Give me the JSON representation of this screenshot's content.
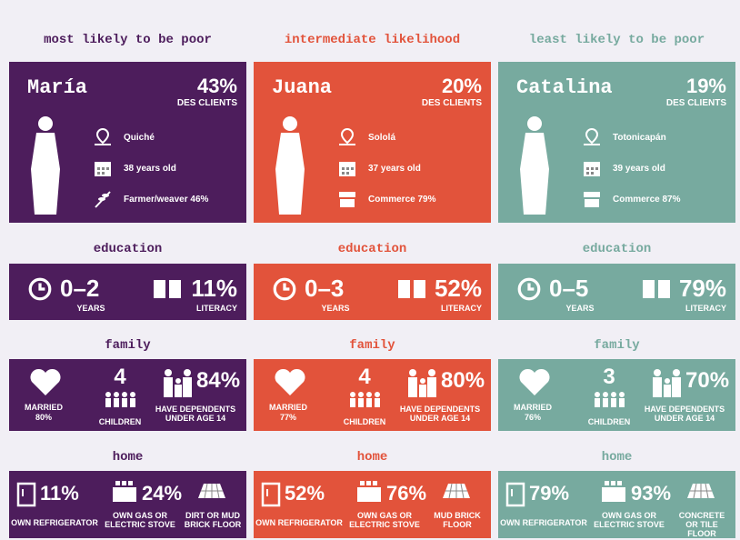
{
  "columns": [
    {
      "heading": "most likely to be poor",
      "color": "#4d1d5c",
      "name": "María",
      "share": "43%",
      "share_label": "DES CLIENTS",
      "location": "Quiché",
      "age": "38 years old",
      "occupation": "Farmer/weaver 46%",
      "education_heading": "education",
      "years": "0–2",
      "years_label": "YEARS",
      "literacy": "11%",
      "literacy_label": "LITERACY",
      "family_heading": "family",
      "married_label": "MARRIED",
      "married": "80%",
      "children": "4",
      "children_label": "CHILDREN",
      "dependents": "84%",
      "dependents_label": "HAVE DEPENDENTS UNDER AGE 14",
      "home_heading": "home",
      "fridge": "11%",
      "fridge_label": "OWN REFRIGERATOR",
      "stove": "24%",
      "stove_label": "OWN GAS OR ELECTRIC STOVE",
      "floor_label": "DIRT OR MUD BRICK FLOOR"
    },
    {
      "heading": "intermediate likelihood",
      "color": "#e2533b",
      "name": "Juana",
      "share": "20%",
      "share_label": "DES CLIENTS",
      "location": "Sololá",
      "age": "37 years old",
      "occupation": "Commerce 79%",
      "education_heading": "education",
      "years": "0–3",
      "years_label": "YEARS",
      "literacy": "52%",
      "literacy_label": "LITERACY",
      "family_heading": "family",
      "married_label": "MARRIED",
      "married": "77%",
      "children": "4",
      "children_label": "CHILDREN",
      "dependents": "80%",
      "dependents_label": "HAVE DEPENDENTS UNDER AGE 14",
      "home_heading": "home",
      "fridge": "52%",
      "fridge_label": "OWN REFRIGERATOR",
      "stove": "76%",
      "stove_label": "OWN GAS OR ELECTRIC STOVE",
      "floor_label": "MUD BRICK FLOOR"
    },
    {
      "heading": "least likely to be poor",
      "color": "#77aa9f",
      "name": "Catalina",
      "share": "19%",
      "share_label": "DES CLIENTS",
      "location": "Totonicapán",
      "age": "39 years old",
      "occupation": "Commerce 87%",
      "education_heading": "education",
      "years": "0–5",
      "years_label": "YEARS",
      "literacy": "79%",
      "literacy_label": "LITERACY",
      "family_heading": "family",
      "married_label": "MARRIED",
      "married": "76%",
      "children": "3",
      "children_label": "CHILDREN",
      "dependents": "70%",
      "dependents_label": "HAVE DEPENDENTS UNDER AGE 14",
      "home_heading": "home",
      "fridge": "79%",
      "fridge_label": "OWN REFRIGERATOR",
      "stove": "93%",
      "stove_label": "OWN GAS OR ELECTRIC STOVE",
      "floor_label": "CONCRETE OR TILE FLOOR"
    }
  ]
}
